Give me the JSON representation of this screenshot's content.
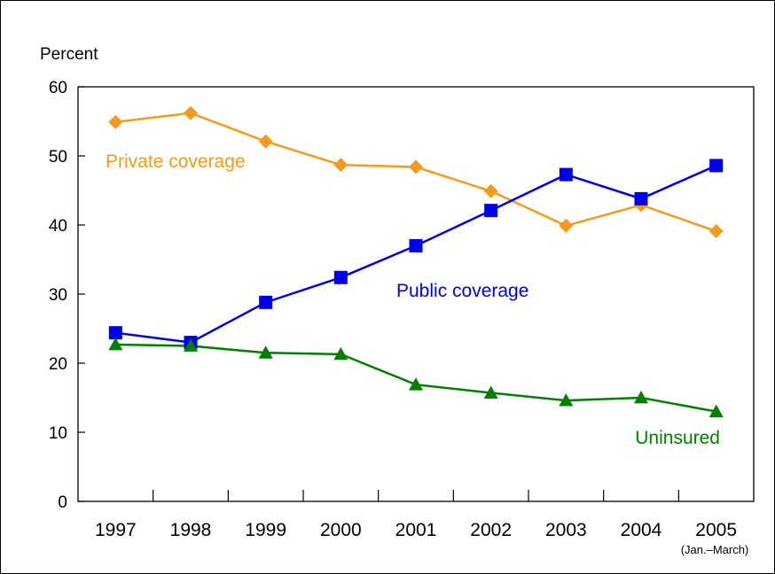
{
  "chart_data": {
    "type": "line",
    "ylabel": "Percent",
    "ylim": [
      0,
      60
    ],
    "yticks": [
      0,
      10,
      20,
      30,
      40,
      50,
      60
    ],
    "categories": [
      "1997",
      "1998",
      "1999",
      "2000",
      "2001",
      "2002",
      "2003",
      "2004",
      "2005"
    ],
    "x_note": "(Jan.–March)",
    "series": [
      {
        "name": "Private coverage",
        "color": "#f59a1b",
        "marker": "diamond",
        "values": [
          54.9,
          56.2,
          52.1,
          48.7,
          48.4,
          44.9,
          39.9,
          42.9,
          39.1
        ]
      },
      {
        "name": "Public coverage",
        "color": "#0000e6",
        "marker": "square",
        "values": [
          24.4,
          23.0,
          28.8,
          32.4,
          37.0,
          42.1,
          47.3,
          43.8,
          48.6
        ]
      },
      {
        "name": "Uninsured",
        "color": "#008000",
        "marker": "triangle",
        "values": [
          22.7,
          22.5,
          21.5,
          21.3,
          16.9,
          15.7,
          14.6,
          15.0,
          13.0
        ]
      }
    ]
  }
}
